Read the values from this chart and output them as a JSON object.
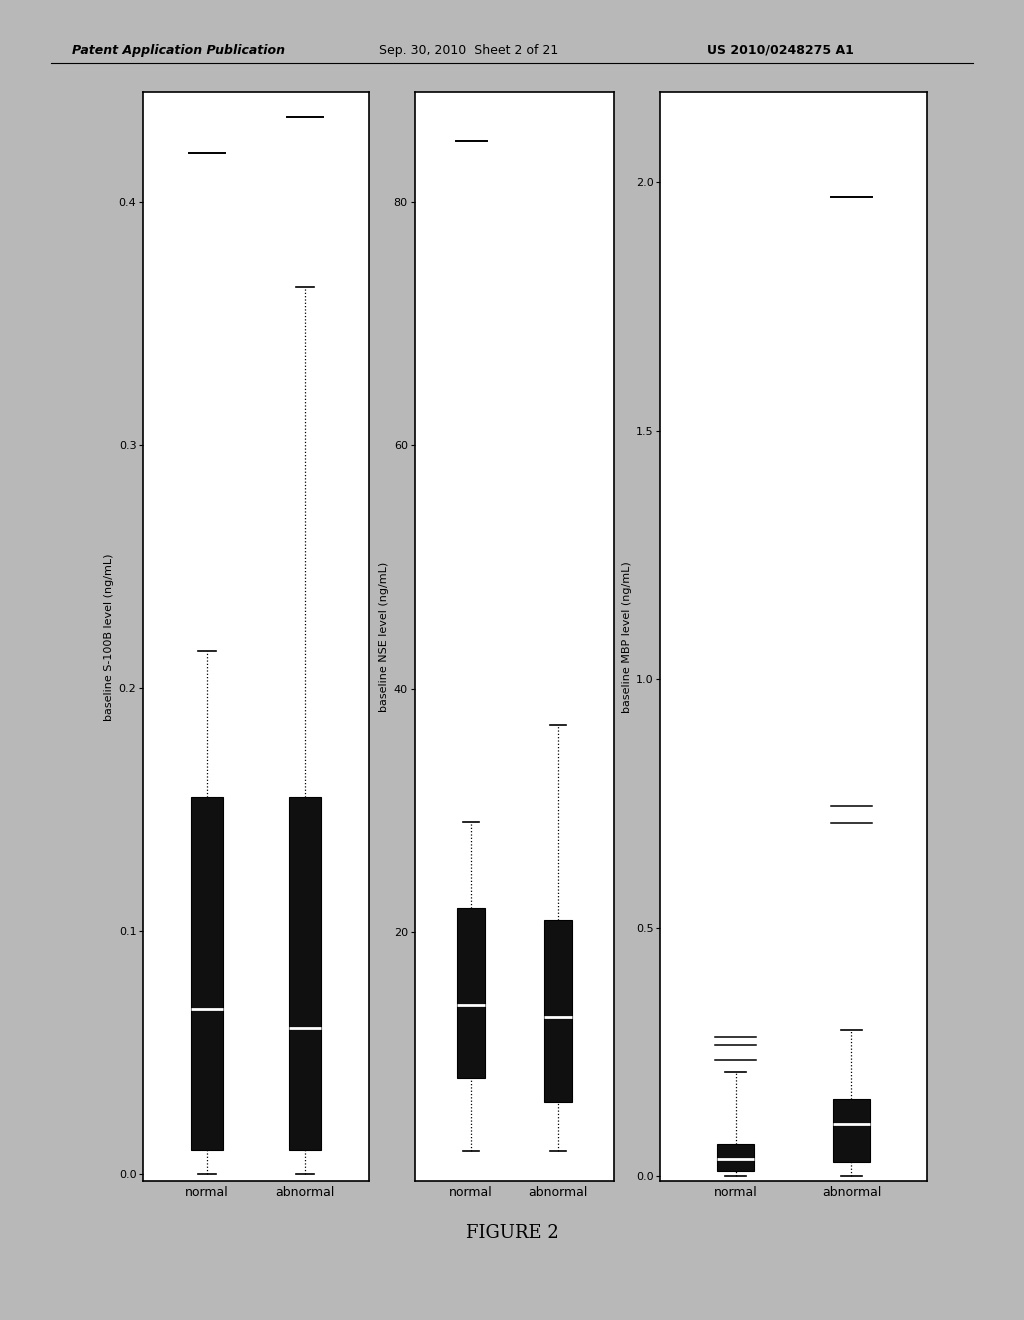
{
  "header_left": "Patent Application Publication",
  "header_center": "Sep. 30, 2010  Sheet 2 of 21",
  "header_right": "US 2010/0248275 A1",
  "figure_title": "FIGURE 2",
  "bg_color": "#b8b8b8",
  "plots": [
    {
      "ylabel": "baseline S-100B level (ng/mL)",
      "yticks": [
        0.0,
        0.1,
        0.2,
        0.3,
        0.4
      ],
      "ylim": [
        -0.003,
        0.445
      ],
      "categories": [
        "normal",
        "abnormal"
      ],
      "boxes": [
        {
          "q1": 0.01,
          "q3": 0.155,
          "median": 0.068,
          "whisker_low": 0.0,
          "whisker_high": 0.215,
          "flier_high": 0.42
        },
        {
          "q1": 0.01,
          "q3": 0.155,
          "median": 0.06,
          "whisker_low": 0.0,
          "whisker_high": 0.365,
          "flier_high": 0.435
        }
      ]
    },
    {
      "ylabel": "baseline NSE level (ng/mL)",
      "yticks": [
        20,
        40,
        60,
        80
      ],
      "ylim": [
        -0.5,
        89
      ],
      "categories": [
        "normal",
        "abnormal"
      ],
      "boxes": [
        {
          "q1": 8,
          "q3": 22,
          "median": 14,
          "whisker_low": 2,
          "whisker_high": 29,
          "flier_high": 85
        },
        {
          "q1": 6,
          "q3": 21,
          "median": 13,
          "whisker_low": 2,
          "whisker_high": 37,
          "flier_high": null
        }
      ]
    },
    {
      "ylabel": "baseline MBP level (ng/mL)",
      "yticks": [
        0.0,
        0.5,
        1.0,
        1.5,
        2.0
      ],
      "ylim": [
        -0.01,
        2.18
      ],
      "categories": [
        "normal",
        "abnormal"
      ],
      "boxes": [
        {
          "q1": 0.01,
          "q3": 0.065,
          "median": 0.035,
          "whisker_low": 0.0,
          "whisker_high": 0.21,
          "flier_high": null,
          "extra_lines": [
            0.235,
            0.265,
            0.28
          ]
        },
        {
          "q1": 0.03,
          "q3": 0.155,
          "median": 0.105,
          "whisker_low": 0.0,
          "whisker_high": 0.295,
          "flier_high": 1.97,
          "extra_lines": [
            0.71,
            0.745
          ]
        }
      ]
    }
  ]
}
